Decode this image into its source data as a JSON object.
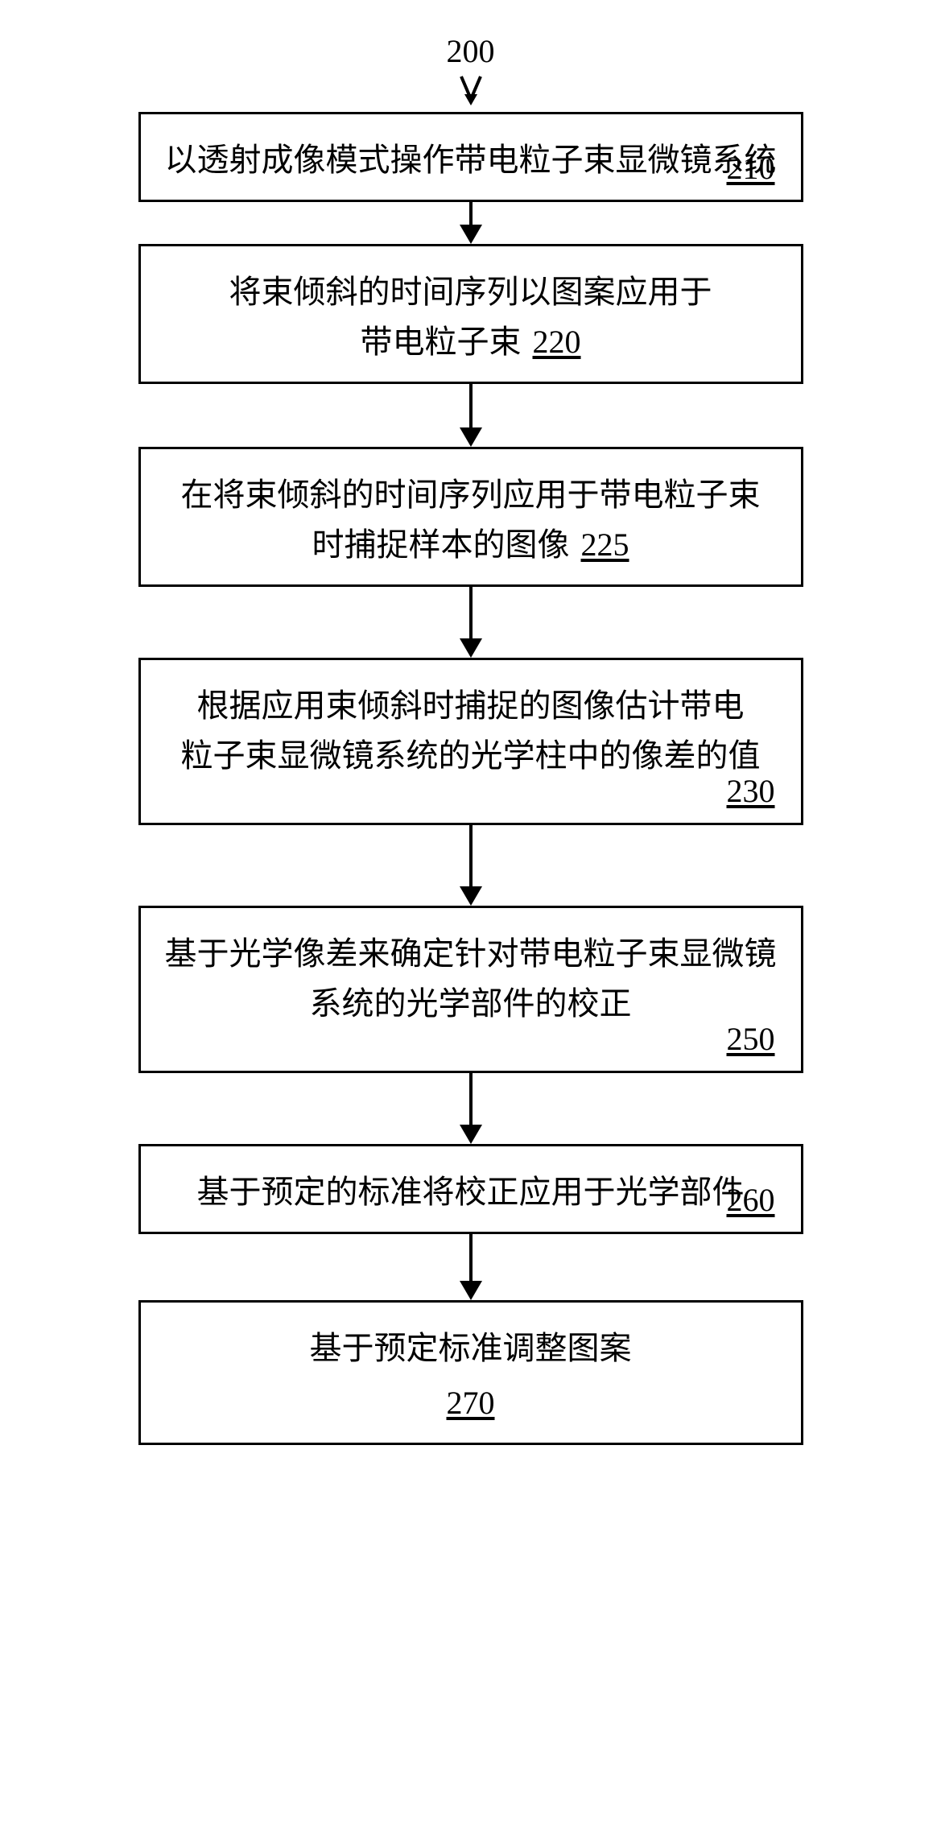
{
  "flowchart": {
    "type": "flowchart",
    "background_color": "#ffffff",
    "border_color": "#000000",
    "border_width": 3,
    "text_color": "#000000",
    "font_size_pt": 30,
    "arrow_color": "#000000",
    "arrow_shaft_width": 4,
    "top_label": "200",
    "steps": [
      {
        "id": "210",
        "lines": [
          "以透射成像模式操作带电粒子束显微镜系统"
        ],
        "num_position": "inline_right",
        "arrow_after_height": 52
      },
      {
        "id": "220",
        "lines": [
          "将束倾斜的时间序列以图案应用于",
          "带电粒子束"
        ],
        "num_position": "after_text_last_line",
        "arrow_after_height": 78
      },
      {
        "id": "225",
        "lines": [
          "在将束倾斜的时间序列应用于带电粒子束",
          "时捕捉样本的图像"
        ],
        "num_position": "after_text_last_line",
        "arrow_after_height": 88
      },
      {
        "id": "230",
        "lines": [
          "根据应用束倾斜时捕捉的图像估计带电",
          "粒子束显微镜系统的光学柱中的像差的值"
        ],
        "num_position": "inline_right",
        "arrow_after_height": 100
      },
      {
        "id": "250",
        "lines": [
          "基于光学像差来确定针对带电粒子束显微镜",
          "系统的光学部件的校正"
        ],
        "num_position": "inline_right",
        "arrow_after_height": 88
      },
      {
        "id": "260",
        "lines": [
          "基于预定的标准将校正应用于光学部件"
        ],
        "num_position": "inline_right",
        "arrow_after_height": 82
      },
      {
        "id": "270",
        "lines": [
          "基于预定标准调整图案"
        ],
        "num_position": "center_below",
        "arrow_after_height": 0
      }
    ]
  }
}
